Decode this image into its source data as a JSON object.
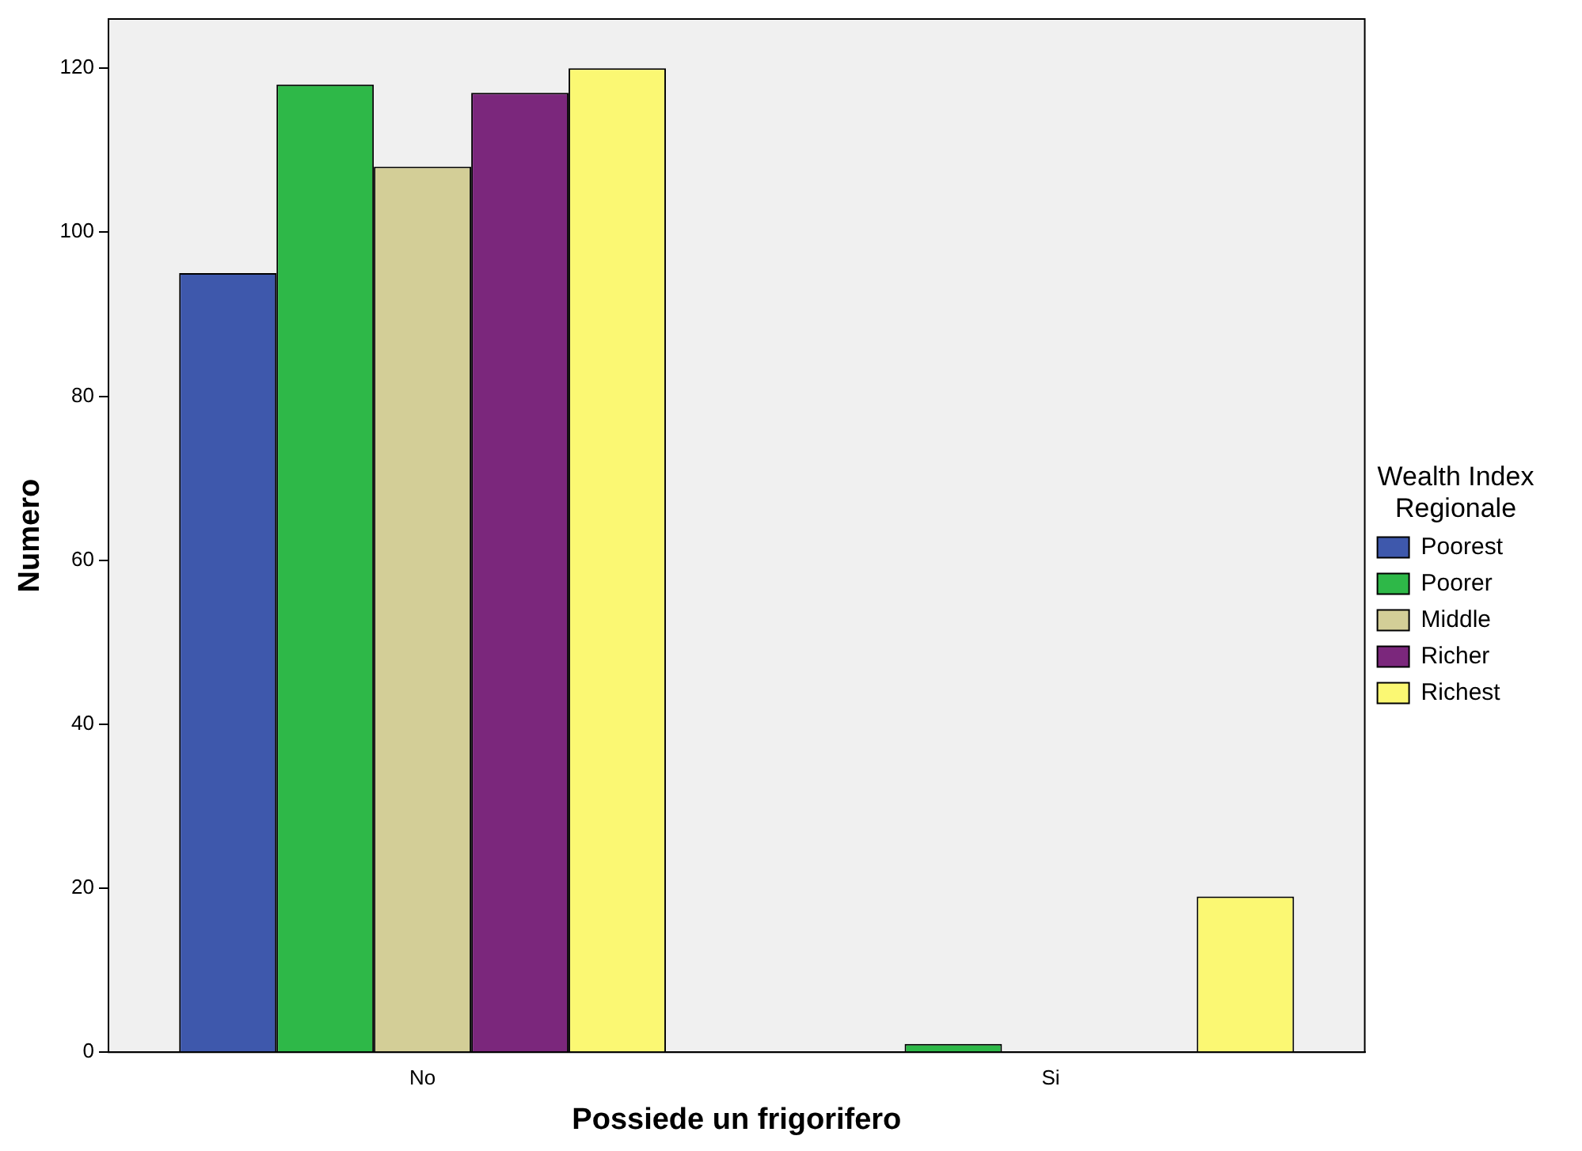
{
  "chart_data": {
    "type": "bar",
    "xlabel": "Possiede un frigorifero",
    "ylabel": "Numero",
    "legend_title": "Wealth Index Regionale",
    "categories": [
      "No",
      "Si"
    ],
    "series": [
      {
        "name": "Poorest",
        "color": "#3e58ac",
        "values": [
          95,
          0
        ]
      },
      {
        "name": "Poorer",
        "color": "#2eb848",
        "values": [
          118,
          1
        ]
      },
      {
        "name": "Middle",
        "color": "#d3ce97",
        "values": [
          108,
          0
        ]
      },
      {
        "name": "Richer",
        "color": "#7b277c",
        "values": [
          117,
          0
        ]
      },
      {
        "name": "Richest",
        "color": "#fbf873",
        "values": [
          120,
          19
        ]
      }
    ],
    "ylim": [
      0,
      126
    ],
    "yticks": [
      0,
      20,
      40,
      60,
      80,
      100,
      120
    ],
    "grid": false,
    "legend": "right"
  }
}
